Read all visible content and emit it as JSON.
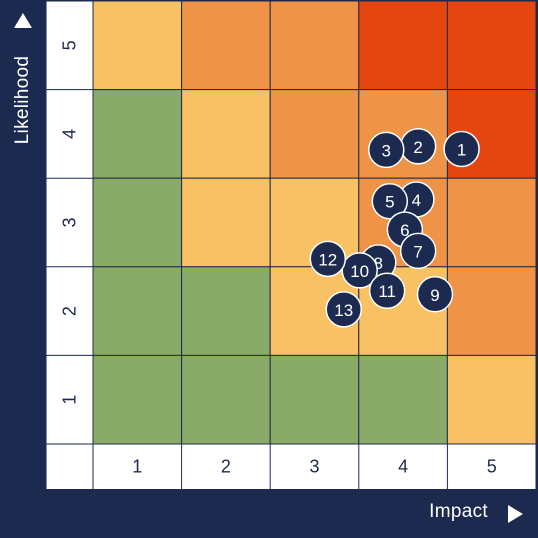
{
  "chart_data": {
    "type": "heatmap",
    "title": "",
    "xlabel": "Impact",
    "ylabel": "Likelihood",
    "x_categories": [
      "1",
      "2",
      "3",
      "4",
      "5"
    ],
    "y_categories": [
      "1",
      "2",
      "3",
      "4",
      "5"
    ],
    "colors": {
      "green": "#8aab68",
      "yellow": "#f8c264",
      "orange": "#ef9346",
      "red": "#e5450f",
      "marker": "#1c2a4f",
      "frame": "#1c2a4f"
    },
    "grid_rows_top_to_bottom": [
      [
        "yellow",
        "orange",
        "orange",
        "red",
        "red"
      ],
      [
        "green",
        "yellow",
        "orange",
        "orange",
        "red"
      ],
      [
        "green",
        "yellow",
        "yellow",
        "orange",
        "orange"
      ],
      [
        "green",
        "green",
        "yellow",
        "yellow",
        "orange"
      ],
      [
        "green",
        "green",
        "green",
        "green",
        "yellow"
      ]
    ],
    "points": [
      {
        "label": "1",
        "impact": 4.66,
        "likelihood": 3.83
      },
      {
        "label": "2",
        "impact": 4.17,
        "likelihood": 3.86
      },
      {
        "label": "3",
        "impact": 3.81,
        "likelihood": 3.82
      },
      {
        "label": "4",
        "impact": 4.15,
        "likelihood": 3.26
      },
      {
        "label": "5",
        "impact": 3.85,
        "likelihood": 3.24
      },
      {
        "label": "6",
        "impact": 4.02,
        "likelihood": 2.92
      },
      {
        "label": "7",
        "impact": 4.17,
        "likelihood": 2.68
      },
      {
        "label": "8",
        "impact": 3.72,
        "likelihood": 2.55
      },
      {
        "label": "9",
        "impact": 4.36,
        "likelihood": 2.19
      },
      {
        "label": "10",
        "impact": 3.51,
        "likelihood": 2.46
      },
      {
        "label": "11",
        "impact": 3.82,
        "likelihood": 2.23
      },
      {
        "label": "12",
        "impact": 3.15,
        "likelihood": 2.59
      },
      {
        "label": "13",
        "impact": 3.33,
        "likelihood": 2.02
      }
    ]
  }
}
